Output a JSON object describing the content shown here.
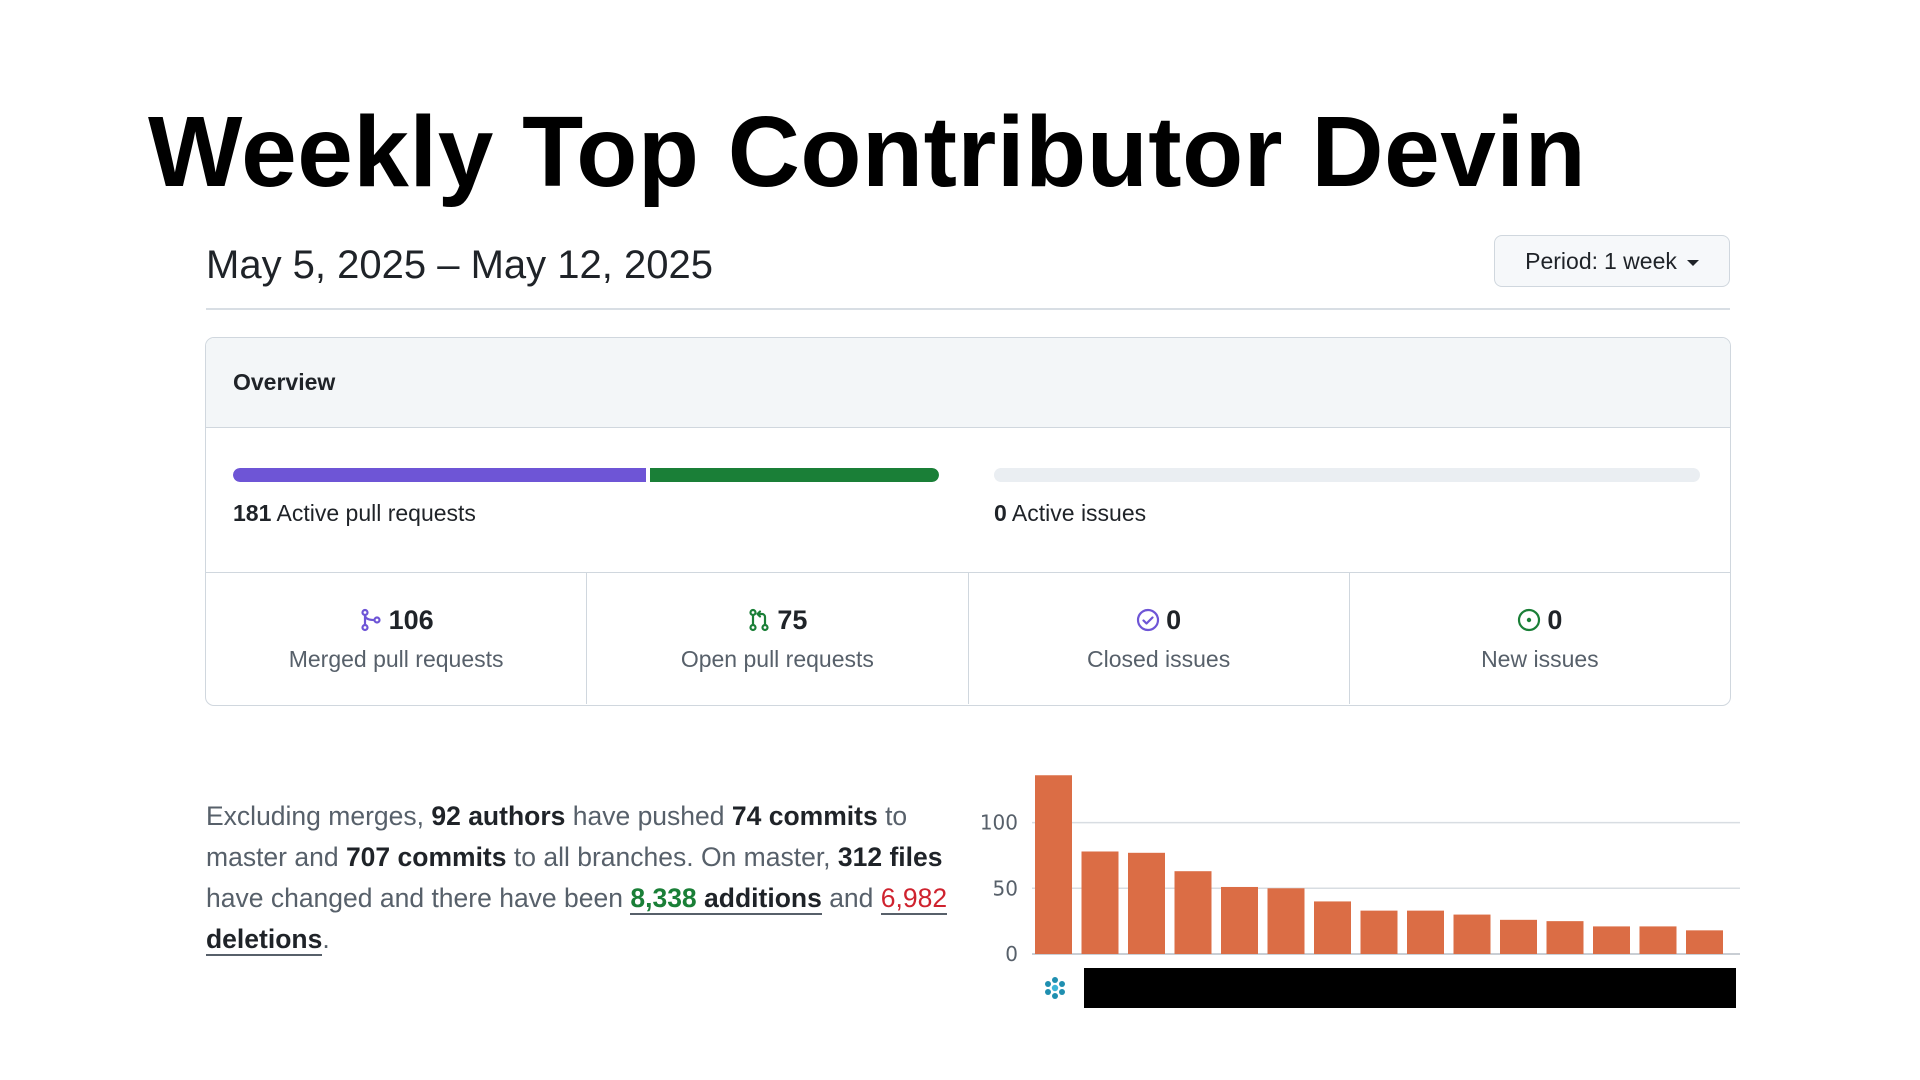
{
  "slide": {
    "title": "Weekly Top Contributor Devin"
  },
  "header": {
    "date_range": "May 5, 2025 – May 12, 2025",
    "period_label": "Period:",
    "period_value": "1 week"
  },
  "overview": {
    "title": "Overview",
    "pull_requests": {
      "count": "181",
      "label": "Active pull requests",
      "merged_share": 0.5856
    },
    "issues": {
      "count": "0",
      "label": "Active issues",
      "fill": 0
    },
    "stats": [
      {
        "icon": "git-merge-icon",
        "value": "106",
        "label": "Merged pull requests",
        "color": "#6e55d6"
      },
      {
        "icon": "git-pull-request-icon",
        "value": "75",
        "label": "Open pull requests",
        "color": "#1a7f37"
      },
      {
        "icon": "issue-closed-icon",
        "value": "0",
        "label": "Closed issues",
        "color": "#6e55d6"
      },
      {
        "icon": "issue-opened-icon",
        "value": "0",
        "label": "New issues",
        "color": "#1a7f37"
      }
    ]
  },
  "summary": {
    "t1": "Excluding merges, ",
    "authors": "92 authors",
    "t2": " have pushed ",
    "commits_master": "74 commits",
    "t3": " to master and ",
    "commits_all": "707 commits",
    "t4": " to all branches. On master, ",
    "files": "312 files",
    "t5": " have changed and there have been ",
    "additions_num": "8,338",
    "additions_word": " additions",
    "t6": " and ",
    "deletions_num": "6,982",
    "deletions_word": " deletions",
    "t7": "."
  },
  "chart_data": {
    "type": "bar",
    "values": [
      136,
      78,
      77,
      63,
      51,
      50,
      40,
      33,
      33,
      30,
      26,
      25,
      21,
      21,
      18
    ],
    "yticks": [
      0,
      50,
      100
    ],
    "ylim": [
      0,
      140
    ],
    "bar_color": "#db6d45",
    "grid": true
  }
}
